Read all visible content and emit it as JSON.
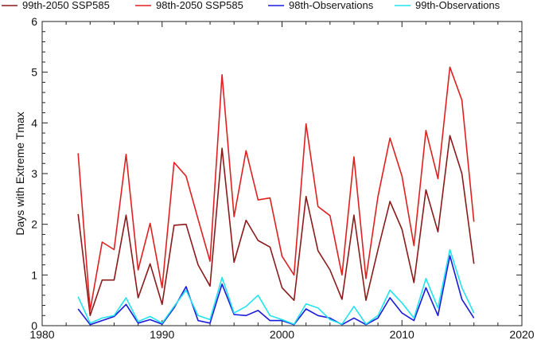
{
  "chart_data": {
    "type": "line",
    "title": "",
    "xlabel": "",
    "ylabel": "Days with Extreme Tmax",
    "xlim": [
      1980,
      2020
    ],
    "ylim": [
      0,
      6
    ],
    "xticks": [
      1980,
      1990,
      2000,
      2010,
      2020
    ],
    "yticks": [
      0,
      1,
      2,
      3,
      4,
      5,
      6
    ],
    "legend_position": "top",
    "grid": false,
    "x": [
      1983,
      1984,
      1985,
      1986,
      1987,
      1988,
      1989,
      1990,
      1991,
      1992,
      1993,
      1994,
      1995,
      1996,
      1997,
      1998,
      1999,
      2000,
      2001,
      2002,
      2003,
      2004,
      2005,
      2006,
      2007,
      2008,
      2009,
      2010,
      2011,
      2012,
      2013,
      2014,
      2015,
      2016
    ],
    "series": [
      {
        "name": "99th-2050 SSP585",
        "color": "#8b1a1a",
        "values": [
          2.2,
          0.2,
          0.9,
          0.9,
          2.18,
          0.55,
          1.22,
          0.42,
          1.98,
          2.0,
          1.2,
          0.78,
          3.5,
          1.25,
          2.08,
          1.68,
          1.55,
          0.75,
          0.5,
          2.55,
          1.48,
          1.1,
          0.52,
          2.18,
          0.5,
          1.5,
          2.45,
          1.9,
          0.85,
          2.68,
          1.85,
          3.75,
          3.0,
          1.22
        ]
      },
      {
        "name": "98th-2050 SSP585",
        "color": "#e02020",
        "values": [
          3.4,
          0.3,
          1.65,
          1.5,
          3.38,
          1.1,
          2.02,
          0.75,
          3.22,
          2.95,
          2.1,
          1.27,
          4.95,
          2.15,
          3.45,
          2.48,
          2.52,
          1.37,
          1.0,
          3.98,
          2.35,
          2.17,
          1.0,
          3.33,
          0.93,
          2.55,
          3.7,
          2.95,
          1.58,
          3.85,
          2.9,
          5.1,
          4.45,
          2.05
        ]
      },
      {
        "name": "98th-Observations",
        "color": "#1a1adb",
        "values": [
          0.33,
          0.02,
          0.1,
          0.18,
          0.42,
          0.05,
          0.12,
          0.03,
          0.35,
          0.77,
          0.1,
          0.05,
          0.82,
          0.22,
          0.2,
          0.3,
          0.1,
          0.1,
          0.02,
          0.33,
          0.2,
          0.15,
          0.02,
          0.15,
          0.02,
          0.15,
          0.55,
          0.25,
          0.1,
          0.75,
          0.2,
          1.38,
          0.52,
          0.15
        ]
      },
      {
        "name": "99th-Observations",
        "color": "#22e3ee",
        "values": [
          0.57,
          0.05,
          0.15,
          0.2,
          0.55,
          0.08,
          0.18,
          0.05,
          0.38,
          0.7,
          0.2,
          0.12,
          0.95,
          0.25,
          0.38,
          0.6,
          0.2,
          0.12,
          0.03,
          0.43,
          0.35,
          0.12,
          0.03,
          0.38,
          0.03,
          0.2,
          0.7,
          0.45,
          0.15,
          0.93,
          0.35,
          1.5,
          0.75,
          0.25
        ]
      }
    ]
  }
}
